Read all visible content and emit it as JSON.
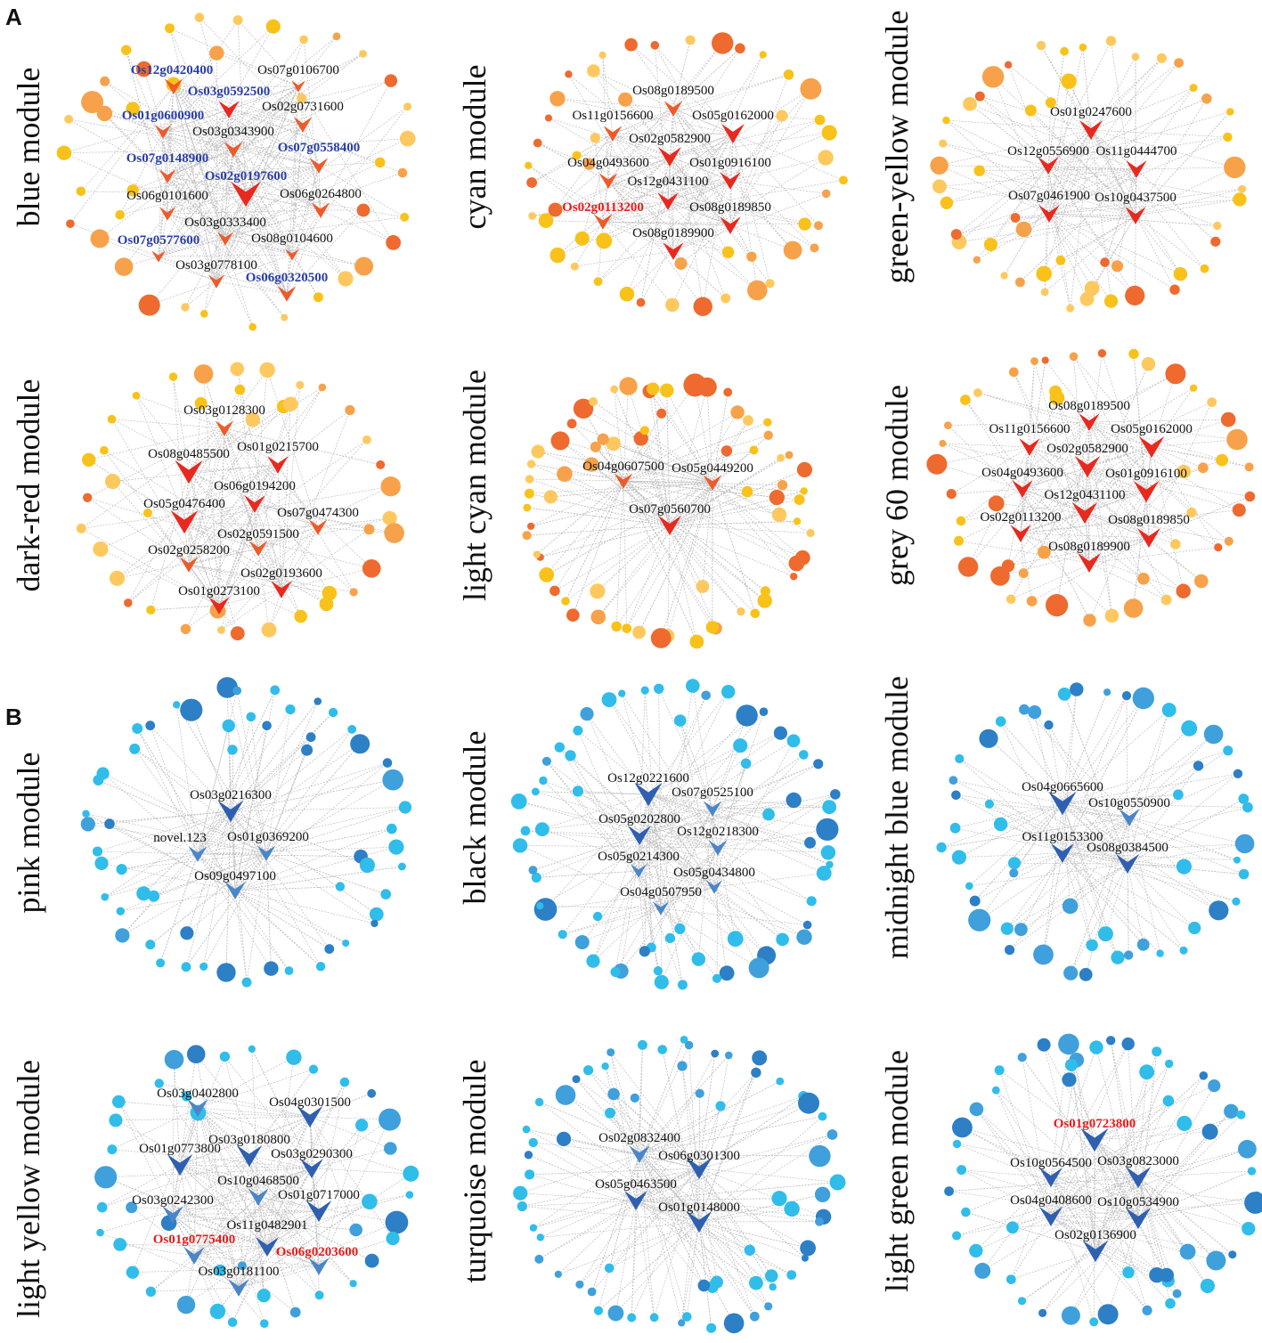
{
  "panels": {
    "A": "A",
    "B": "B"
  },
  "colors": {
    "warm_hub": "#e8291f",
    "warm_mid": "#ee5a2a",
    "warm_node_1": "#ee6a2e",
    "warm_node_2": "#f7a24a",
    "warm_node_3": "#fdc95f",
    "warm_node_4": "#f9c21a",
    "cool_hub": "#2f5fb0",
    "cool_mid": "#4a86c8",
    "cool_node_1": "#30bdea",
    "cool_node_2": "#3fa0dc",
    "cool_node_3": "#2d7fc6",
    "edge": "#bdbdbd",
    "label_blue": "#2b3fa8",
    "label_red": "#e61e1e",
    "label_black": "#111111"
  },
  "modules": [
    {
      "title": "blue module",
      "palette": "warm",
      "genes": [
        {
          "name": "Os12g0420400",
          "style": "blue"
        },
        {
          "name": "Os07g0106700",
          "style": "black"
        },
        {
          "name": "Os03g0592500",
          "style": "blue"
        },
        {
          "name": "Os01g0600900",
          "style": "blue"
        },
        {
          "name": "Os02g0731600",
          "style": "black"
        },
        {
          "name": "Os03g0343900",
          "style": "black"
        },
        {
          "name": "Os07g0558400",
          "style": "blue"
        },
        {
          "name": "Os07g0148900",
          "style": "blue"
        },
        {
          "name": "Os02g0197600",
          "style": "blue"
        },
        {
          "name": "Os06g0101600",
          "style": "black"
        },
        {
          "name": "Os06g0264800",
          "style": "black"
        },
        {
          "name": "Os03g0333400",
          "style": "black"
        },
        {
          "name": "Os07g0577600",
          "style": "blue"
        },
        {
          "name": "Os08g0104600",
          "style": "black"
        },
        {
          "name": "Os03g0778100",
          "style": "black"
        },
        {
          "name": "Os06g0320500",
          "style": "blue"
        }
      ]
    },
    {
      "title": "cyan module",
      "palette": "warm",
      "genes": [
        {
          "name": "Os08g0189500",
          "style": "black"
        },
        {
          "name": "Os11g0156600",
          "style": "black"
        },
        {
          "name": "Os05g0162000",
          "style": "black"
        },
        {
          "name": "Os02g0582900",
          "style": "black"
        },
        {
          "name": "Os04g0493600",
          "style": "black"
        },
        {
          "name": "Os01g0916100",
          "style": "black"
        },
        {
          "name": "Os12g0431100",
          "style": "black"
        },
        {
          "name": "Os02g0113200",
          "style": "red"
        },
        {
          "name": "Os08g0189850",
          "style": "black"
        },
        {
          "name": "Os08g0189900",
          "style": "black"
        }
      ]
    },
    {
      "title": "green-yellow module",
      "palette": "warm",
      "genes": [
        {
          "name": "Os01g0247600",
          "style": "black"
        },
        {
          "name": "Os12g0556900",
          "style": "black"
        },
        {
          "name": "Os11g0444700",
          "style": "black"
        },
        {
          "name": "Os07g0461900",
          "style": "black"
        },
        {
          "name": "Os10g0437500",
          "style": "black"
        }
      ]
    },
    {
      "title": "dark-red module",
      "palette": "warm",
      "genes": [
        {
          "name": "Os03g0128300",
          "style": "black"
        },
        {
          "name": "Os08g0485500",
          "style": "black"
        },
        {
          "name": "Os01g0215700",
          "style": "black"
        },
        {
          "name": "Os06g0194200",
          "style": "black"
        },
        {
          "name": "Os05g0476400",
          "style": "black"
        },
        {
          "name": "Os07g0474300",
          "style": "black"
        },
        {
          "name": "Os02g0591500",
          "style": "black"
        },
        {
          "name": "Os02g0258200",
          "style": "black"
        },
        {
          "name": "Os02g0193600",
          "style": "black"
        },
        {
          "name": "Os01g0273100",
          "style": "black"
        }
      ]
    },
    {
      "title": "light cyan module",
      "palette": "warm",
      "genes": [
        {
          "name": "Os04g0607500",
          "style": "black"
        },
        {
          "name": "Os05g0449200",
          "style": "black"
        },
        {
          "name": "Os07g0560700",
          "style": "black"
        }
      ]
    },
    {
      "title": "grey 60 module",
      "palette": "warm",
      "genes": [
        {
          "name": "Os08g0189500",
          "style": "black"
        },
        {
          "name": "Os11g0156600",
          "style": "black"
        },
        {
          "name": "Os05g0162000",
          "style": "black"
        },
        {
          "name": "Os02g0582900",
          "style": "black"
        },
        {
          "name": "Os04g0493600",
          "style": "black"
        },
        {
          "name": "Os01g0916100",
          "style": "black"
        },
        {
          "name": "Os12g0431100",
          "style": "black"
        },
        {
          "name": "Os02g0113200",
          "style": "black"
        },
        {
          "name": "Os08g0189850",
          "style": "black"
        },
        {
          "name": "Os08g0189900",
          "style": "black"
        }
      ]
    },
    {
      "title": "pink module",
      "palette": "cool",
      "genes": [
        {
          "name": "Os03g0216300",
          "style": "black"
        },
        {
          "name": "novel.123",
          "style": "black"
        },
        {
          "name": "Os01g0369200",
          "style": "black"
        },
        {
          "name": "Os09g0497100",
          "style": "black"
        }
      ]
    },
    {
      "title": "black module",
      "palette": "cool",
      "genes": [
        {
          "name": "Os12g0221600",
          "style": "black"
        },
        {
          "name": "Os07g0525100",
          "style": "black"
        },
        {
          "name": "Os05g0202800",
          "style": "black"
        },
        {
          "name": "Os12g0218300",
          "style": "black"
        },
        {
          "name": "Os05g0214300",
          "style": "black"
        },
        {
          "name": "Os05g0434800",
          "style": "black"
        },
        {
          "name": "Os04g0507950",
          "style": "black"
        }
      ]
    },
    {
      "title": "midnight blue module",
      "palette": "cool",
      "genes": [
        {
          "name": "Os04g0665600",
          "style": "black"
        },
        {
          "name": "Os10g0550900",
          "style": "black"
        },
        {
          "name": "Os11g0153300",
          "style": "black"
        },
        {
          "name": "Os08g0384500",
          "style": "black"
        }
      ]
    },
    {
      "title": "light yellow module",
      "palette": "cool",
      "genes": [
        {
          "name": "Os03g0402800",
          "style": "black"
        },
        {
          "name": "Os04g0301500",
          "style": "black"
        },
        {
          "name": "Os01g0773800",
          "style": "black"
        },
        {
          "name": "Os03g0180800",
          "style": "black"
        },
        {
          "name": "Os03g0290300",
          "style": "black"
        },
        {
          "name": "Os10g0468500",
          "style": "black"
        },
        {
          "name": "Os03g0242300",
          "style": "black"
        },
        {
          "name": "Os01g0717000",
          "style": "black"
        },
        {
          "name": "Os11g0482901",
          "style": "black"
        },
        {
          "name": "Os01g0775400",
          "style": "red"
        },
        {
          "name": "Os06g0203600",
          "style": "red"
        },
        {
          "name": "Os03g0181100",
          "style": "black"
        }
      ]
    },
    {
      "title": "turquoise module",
      "palette": "cool",
      "genes": [
        {
          "name": "Os02g0832400",
          "style": "black"
        },
        {
          "name": "Os06g0301300",
          "style": "black"
        },
        {
          "name": "Os05g0463500",
          "style": "black"
        },
        {
          "name": "Os01g0148000",
          "style": "black"
        }
      ]
    },
    {
      "title": "light green module",
      "palette": "cool",
      "genes": [
        {
          "name": "Os01g0723800",
          "style": "red"
        },
        {
          "name": "Os10g0564500",
          "style": "black"
        },
        {
          "name": "Os03g0823000",
          "style": "black"
        },
        {
          "name": "Os04g0408600",
          "style": "black"
        },
        {
          "name": "Os10g0534900",
          "style": "black"
        },
        {
          "name": "Os02g0136900",
          "style": "black"
        }
      ]
    }
  ]
}
